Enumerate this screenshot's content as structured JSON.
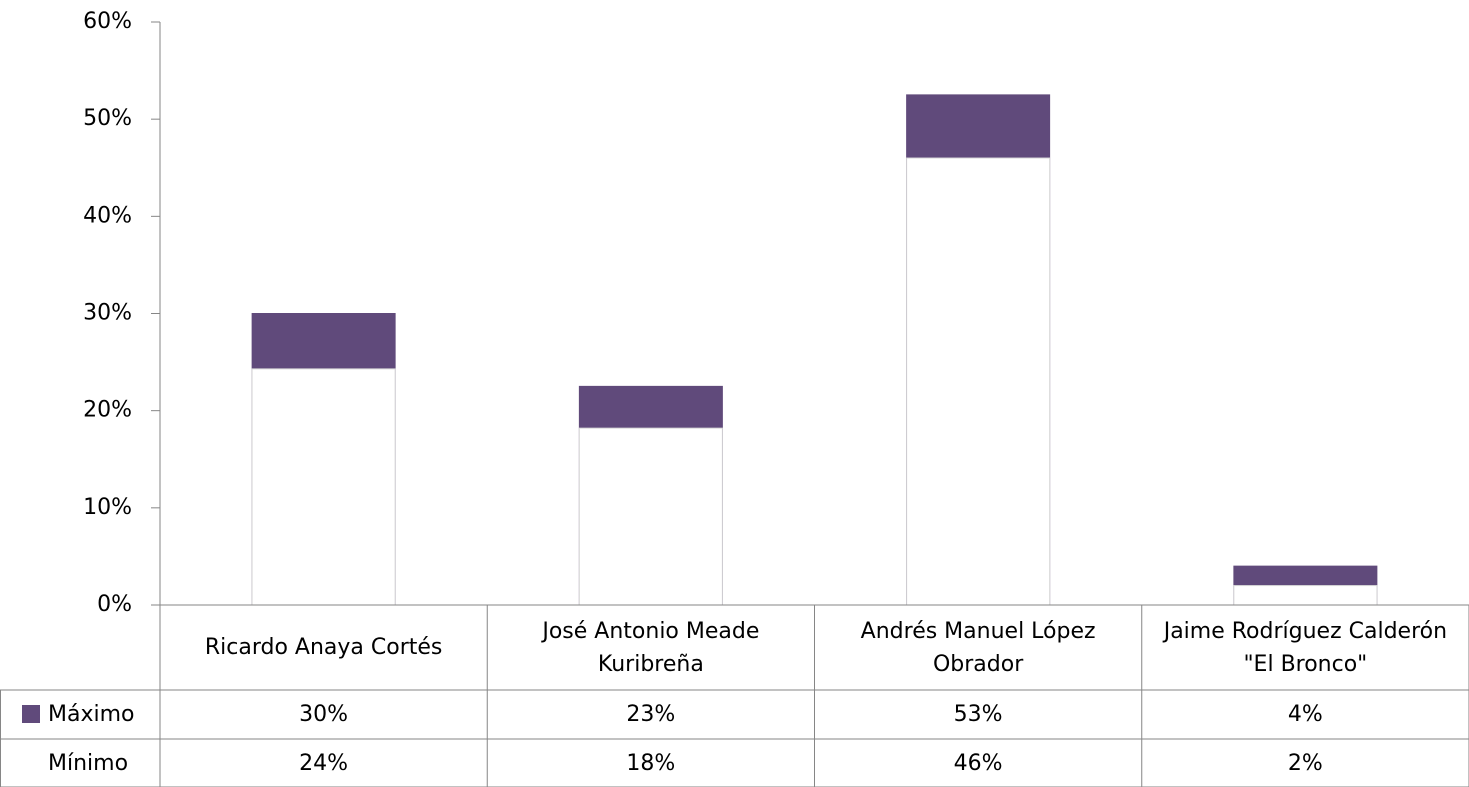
{
  "chart_data": {
    "type": "bar",
    "categories": [
      "Ricardo Anaya Cortés",
      "José Antonio Meade Kuribreña",
      "Andrés Manuel López Obrador",
      "Jaime Rodríguez Calderón \"El Bronco\""
    ],
    "series": [
      {
        "name": "Máximo",
        "color": "#604a7b",
        "values": [
          30,
          22.5,
          52.5,
          4
        ],
        "value_labels": [
          "30%",
          "23%",
          "53%",
          "4%"
        ]
      },
      {
        "name": "Mínimo",
        "color": "#ffffff",
        "values": [
          24.3,
          18.2,
          46,
          2
        ],
        "value_labels": [
          "24%",
          "18%",
          "46%",
          "2%"
        ]
      }
    ],
    "ylim": [
      0,
      60
    ],
    "yticks": [
      {
        "value": 0,
        "label": "0%"
      },
      {
        "value": 10,
        "label": "10%"
      },
      {
        "value": 20,
        "label": "20%"
      },
      {
        "value": 30,
        "label": "30%"
      },
      {
        "value": 40,
        "label": "40%"
      },
      {
        "value": 50,
        "label": "50%"
      },
      {
        "value": 60,
        "label": "60%"
      }
    ],
    "overlap": true
  }
}
